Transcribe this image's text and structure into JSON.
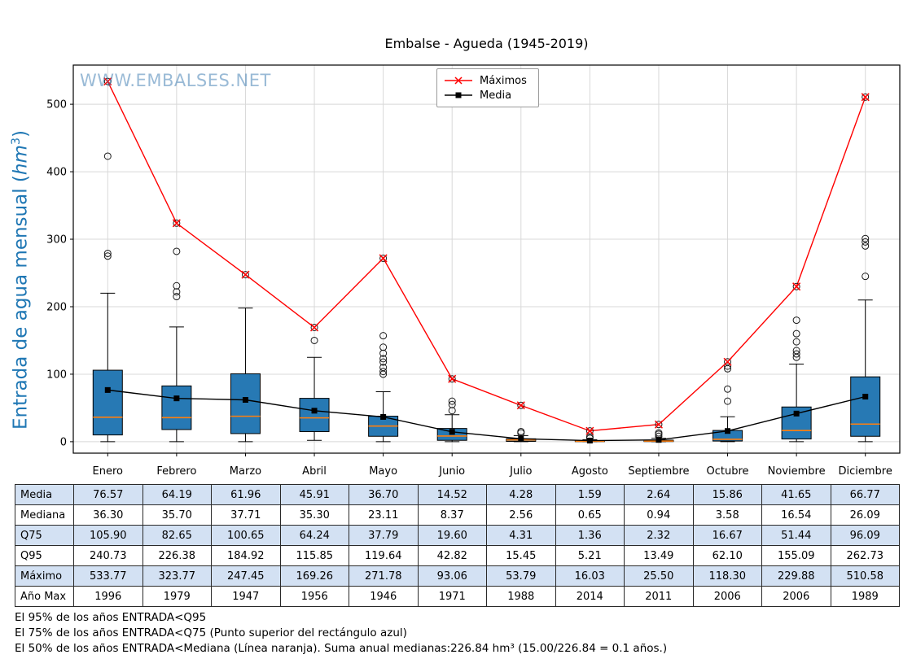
{
  "title": "Embalse - Agueda (1945-2019)",
  "watermark": "WWW.EMBALSES.NET",
  "ylabel": {
    "prefix": "Entrada de agua mensual (",
    "math": "hm",
    "sup": "3",
    "suffix": ")"
  },
  "chart_data": {
    "type": "boxplot",
    "title": "Embalse - Agueda (1945-2019)",
    "ylabel": "Entrada de agua mensual (hm³)",
    "xlabel": "",
    "ylim": [
      -17,
      558
    ],
    "yticks": [
      0,
      100,
      200,
      300,
      400,
      500
    ],
    "grid": true,
    "legend_position": "top-center",
    "box_fill": "#2779b4",
    "median_color": "#ff7f0e",
    "categories": [
      "Enero",
      "Febrero",
      "Marzo",
      "Abril",
      "Mayo",
      "Junio",
      "Julio",
      "Agosto",
      "Septiembre",
      "Octubre",
      "Noviembre",
      "Diciembre"
    ],
    "boxes": [
      {
        "month": "Enero",
        "q1": 10,
        "median": 36.3,
        "q3": 105.9,
        "whisker_low": 0,
        "whisker_high": 220,
        "outliers": [
          275,
          279,
          423
        ]
      },
      {
        "month": "Febrero",
        "q1": 18,
        "median": 35.7,
        "q3": 82.65,
        "whisker_low": 0,
        "whisker_high": 170,
        "outliers": [
          215,
          222,
          231,
          282
        ]
      },
      {
        "month": "Marzo",
        "q1": 12,
        "median": 37.71,
        "q3": 100.65,
        "whisker_low": 0,
        "whisker_high": 198,
        "outliers": []
      },
      {
        "month": "Abril",
        "q1": 15,
        "median": 35.3,
        "q3": 64.24,
        "whisker_low": 2,
        "whisker_high": 125,
        "outliers": [
          150
        ]
      },
      {
        "month": "Mayo",
        "q1": 8,
        "median": 23.11,
        "q3": 37.79,
        "whisker_low": 0,
        "whisker_high": 74,
        "outliers": [
          100,
          104,
          110,
          118,
          123,
          131,
          140,
          157
        ]
      },
      {
        "month": "Junio",
        "q1": 2,
        "median": 8.37,
        "q3": 19.6,
        "whisker_low": 0,
        "whisker_high": 40,
        "outliers": [
          46,
          55,
          60
        ]
      },
      {
        "month": "Julio",
        "q1": 0.5,
        "median": 2.56,
        "q3": 4.31,
        "whisker_low": 0,
        "whisker_high": 9,
        "outliers": [
          13,
          15
        ]
      },
      {
        "month": "Agosto",
        "q1": 0.1,
        "median": 0.65,
        "q3": 1.36,
        "whisker_low": 0,
        "whisker_high": 3,
        "outliers": [
          5,
          7
        ]
      },
      {
        "month": "Septiembre",
        "q1": 0.2,
        "median": 0.94,
        "q3": 2.32,
        "whisker_low": 0,
        "whisker_high": 5,
        "outliers": [
          8,
          11,
          13
        ]
      },
      {
        "month": "Octubre",
        "q1": 1,
        "median": 3.58,
        "q3": 16.67,
        "whisker_low": 0,
        "whisker_high": 37,
        "outliers": [
          60,
          78,
          108,
          112
        ]
      },
      {
        "month": "Noviembre",
        "q1": 4,
        "median": 16.54,
        "q3": 51.44,
        "whisker_low": 0,
        "whisker_high": 115,
        "outliers": [
          125,
          130,
          135,
          148,
          160,
          180
        ]
      },
      {
        "month": "Diciembre",
        "q1": 8,
        "median": 26.09,
        "q3": 96.09,
        "whisker_low": 0,
        "whisker_high": 210,
        "outliers": [
          245,
          290,
          296,
          301
        ]
      }
    ],
    "series": [
      {
        "name": "Máximos",
        "color": "#ff0000",
        "marker": "x",
        "values": [
          533.77,
          323.77,
          247.45,
          169.26,
          271.78,
          93.06,
          53.79,
          16.03,
          25.5,
          118.3,
          229.88,
          510.58
        ]
      },
      {
        "name": "Media",
        "color": "#000000",
        "marker": "square",
        "values": [
          76.57,
          64.19,
          61.96,
          45.91,
          36.7,
          14.52,
          4.28,
          1.59,
          2.64,
          15.86,
          41.65,
          66.77
        ]
      }
    ]
  },
  "table": {
    "columns": [
      "Enero",
      "Febrero",
      "Marzo",
      "Abril",
      "Mayo",
      "Junio",
      "Julio",
      "Agosto",
      "Septiembre",
      "Octubre",
      "Noviembre",
      "Diciembre"
    ],
    "rows": [
      {
        "label": "Media",
        "values": [
          "76.57",
          "64.19",
          "61.96",
          "45.91",
          "36.70",
          "14.52",
          "4.28",
          "1.59",
          "2.64",
          "15.86",
          "41.65",
          "66.77"
        ]
      },
      {
        "label": "Mediana",
        "values": [
          "36.30",
          "35.70",
          "37.71",
          "35.30",
          "23.11",
          "8.37",
          "2.56",
          "0.65",
          "0.94",
          "3.58",
          "16.54",
          "26.09"
        ]
      },
      {
        "label": "Q75",
        "values": [
          "105.90",
          "82.65",
          "100.65",
          "64.24",
          "37.79",
          "19.60",
          "4.31",
          "1.36",
          "2.32",
          "16.67",
          "51.44",
          "96.09"
        ]
      },
      {
        "label": "Q95",
        "values": [
          "240.73",
          "226.38",
          "184.92",
          "115.85",
          "119.64",
          "42.82",
          "15.45",
          "5.21",
          "13.49",
          "62.10",
          "155.09",
          "262.73"
        ]
      },
      {
        "label": "Máximo",
        "values": [
          "533.77",
          "323.77",
          "247.45",
          "169.26",
          "271.78",
          "93.06",
          "53.79",
          "16.03",
          "25.50",
          "118.30",
          "229.88",
          "510.58"
        ]
      },
      {
        "label": "Año Max",
        "values": [
          "1996",
          "1979",
          "1947",
          "1956",
          "1946",
          "1971",
          "1988",
          "2014",
          "2011",
          "2006",
          "2006",
          "1989"
        ]
      }
    ]
  },
  "footnotes": [
    "El 95% de los años ENTRADA<Q95",
    "El 75% de los años ENTRADA<Q75 (Punto superior del rectángulo azul)",
    "El 50% de los años ENTRADA<Mediana (Línea naranja). Suma anual medianas:226.84 hm³ (15.00/226.84 = 0.1 años.)"
  ]
}
